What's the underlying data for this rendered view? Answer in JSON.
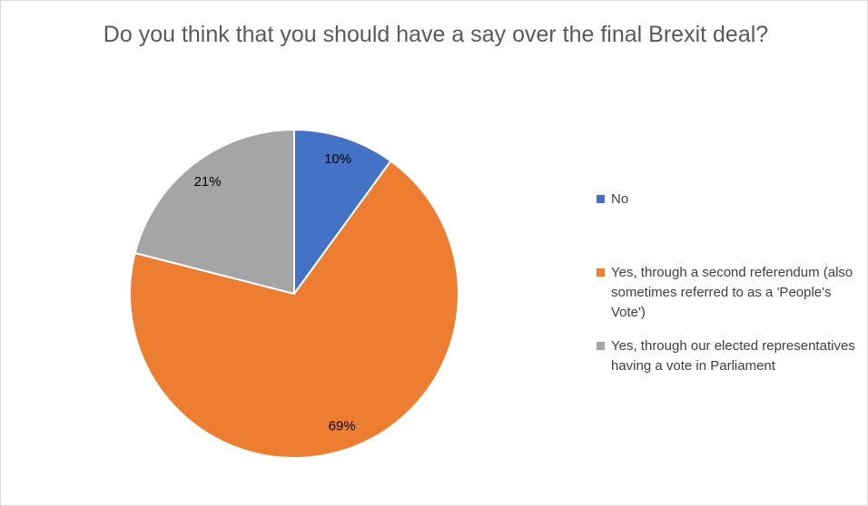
{
  "chart_data": {
    "type": "pie",
    "title": "Do you think that you should have a say over the final Brexit deal?",
    "slices": [
      {
        "label": "No",
        "value": 10,
        "display": "10%",
        "color": "#4472c4"
      },
      {
        "label": "Yes, through a second referendum (also sometimes referred to as a 'People's Vote')",
        "value": 69,
        "display": "69%",
        "color": "#ed7d31"
      },
      {
        "label": "Yes, through our elected representatives having a vote in Parliament",
        "value": 21,
        "display": "21%",
        "color": "#a5a5a5"
      }
    ],
    "legend_position": "right"
  }
}
